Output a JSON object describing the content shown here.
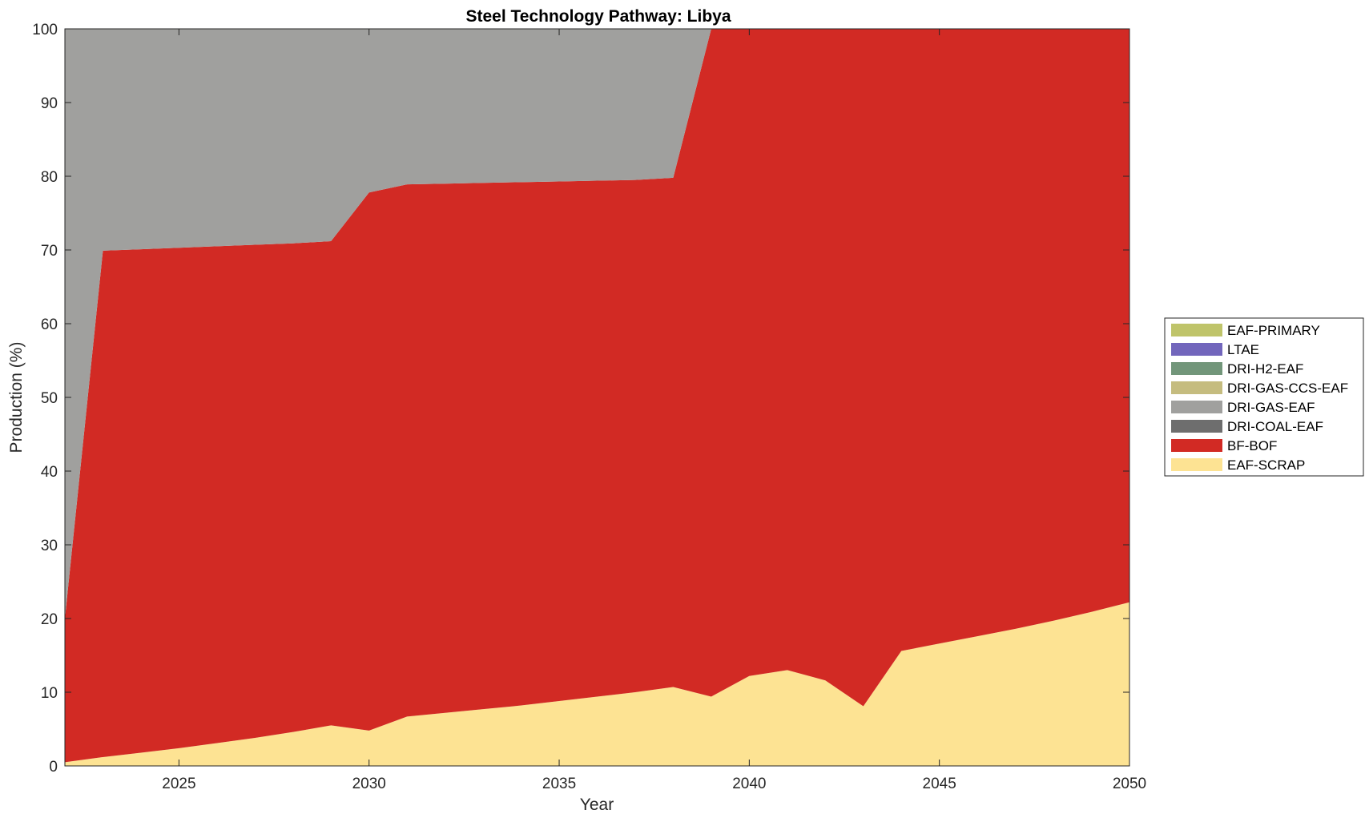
{
  "chart_data": {
    "type": "area",
    "stacked": true,
    "title": "Steel Technology Pathway: Libya",
    "xlabel": "Year",
    "ylabel": "Production (%)",
    "xlim": [
      2022,
      2050
    ],
    "ylim": [
      0,
      100
    ],
    "x_ticks": [
      2025,
      2030,
      2035,
      2040,
      2045,
      2050
    ],
    "y_ticks": [
      0,
      10,
      20,
      30,
      40,
      50,
      60,
      70,
      80,
      90,
      100
    ],
    "grid": false,
    "legend_position": "right",
    "x": [
      2022,
      2023,
      2024,
      2025,
      2026,
      2027,
      2028,
      2029,
      2030,
      2031,
      2032,
      2033,
      2034,
      2035,
      2036,
      2037,
      2038,
      2039,
      2040,
      2041,
      2042,
      2043,
      2044,
      2045,
      2046,
      2047,
      2048,
      2049,
      2050
    ],
    "series": [
      {
        "name": "EAF-SCRAP",
        "color": "#FDE393",
        "values": [
          0.5,
          1.2,
          1.8,
          2.4,
          3.1,
          3.8,
          4.6,
          5.5,
          4.8,
          6.7,
          7.2,
          7.7,
          8.2,
          8.8,
          9.4,
          10.0,
          10.7,
          9.4,
          12.2,
          13.0,
          11.6,
          8.1,
          15.6,
          16.6,
          17.6,
          18.6,
          19.7,
          20.9,
          22.2
        ]
      },
      {
        "name": "BF-BOF",
        "color": "#D22A24",
        "values": [
          19.5,
          68.7,
          68.3,
          67.9,
          67.4,
          66.9,
          66.3,
          65.7,
          73.0,
          72.2,
          71.8,
          71.4,
          71.0,
          70.5,
          70.0,
          69.5,
          69.1,
          90.6,
          87.8,
          87.0,
          88.4,
          91.9,
          84.4,
          83.4,
          82.4,
          81.4,
          80.3,
          79.1,
          77.8
        ]
      },
      {
        "name": "DRI-COAL-EAF",
        "color": "#6E6E6E",
        "values": [
          0,
          0,
          0,
          0,
          0,
          0,
          0,
          0,
          0,
          0,
          0,
          0,
          0,
          0,
          0,
          0,
          0,
          0,
          0,
          0,
          0,
          0,
          0,
          0,
          0,
          0,
          0,
          0,
          0
        ]
      },
      {
        "name": "DRI-GAS-EAF",
        "color": "#A0A09E",
        "values": [
          80.0,
          30.1,
          29.9,
          29.7,
          29.5,
          29.3,
          29.1,
          28.8,
          22.2,
          21.1,
          21.0,
          20.9,
          20.8,
          20.7,
          20.6,
          20.5,
          20.2,
          0,
          0,
          0,
          0,
          0,
          0,
          0,
          0,
          0,
          0,
          0,
          0
        ]
      },
      {
        "name": "DRI-GAS-CCS-EAF",
        "color": "#C5BC7F",
        "values": [
          0,
          0,
          0,
          0,
          0,
          0,
          0,
          0,
          0,
          0,
          0,
          0,
          0,
          0,
          0,
          0,
          0,
          0,
          0,
          0,
          0,
          0,
          0,
          0,
          0,
          0,
          0,
          0,
          0
        ]
      },
      {
        "name": "DRI-H2-EAF",
        "color": "#72967A",
        "values": [
          0,
          0,
          0,
          0,
          0,
          0,
          0,
          0,
          0,
          0,
          0,
          0,
          0,
          0,
          0,
          0,
          0,
          0,
          0,
          0,
          0,
          0,
          0,
          0,
          0,
          0,
          0,
          0,
          0
        ]
      },
      {
        "name": "LTAE",
        "color": "#7266BC",
        "values": [
          0,
          0,
          0,
          0,
          0,
          0,
          0,
          0,
          0,
          0,
          0,
          0,
          0,
          0,
          0,
          0,
          0,
          0,
          0,
          0,
          0,
          0,
          0,
          0,
          0,
          0,
          0,
          0,
          0
        ]
      },
      {
        "name": "EAF-PRIMARY",
        "color": "#BFC46A",
        "values": [
          0,
          0,
          0,
          0,
          0,
          0,
          0,
          0,
          0,
          0,
          0,
          0,
          0,
          0,
          0,
          0,
          0,
          0,
          0,
          0,
          0,
          0,
          0,
          0,
          0,
          0,
          0,
          0,
          0
        ]
      }
    ],
    "legend_order": [
      "EAF-PRIMARY",
      "LTAE",
      "DRI-H2-EAF",
      "DRI-GAS-CCS-EAF",
      "DRI-GAS-EAF",
      "DRI-COAL-EAF",
      "BF-BOF",
      "EAF-SCRAP"
    ]
  }
}
